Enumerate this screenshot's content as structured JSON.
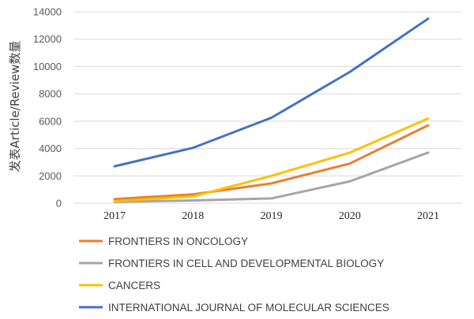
{
  "chart_data": {
    "type": "line",
    "x": [
      "2017",
      "2018",
      "2019",
      "2020",
      "2021"
    ],
    "ylabel": "发表Article/Review数量",
    "ylim": [
      0,
      14000
    ],
    "yticks": [
      "0",
      "2000",
      "4000",
      "6000",
      "8000",
      "10000",
      "12000",
      "14000"
    ],
    "grid": true,
    "legend_position": "bottom",
    "series": [
      {
        "name": "FRONTIERS IN ONCOLOGY",
        "color": "#ed7d31",
        "values": [
          300,
          650,
          1450,
          2900,
          5700
        ]
      },
      {
        "name": "FRONTIERS IN CELL AND DEVELOPMENTAL BIOLOGY",
        "color": "#a5a5a5",
        "values": [
          100,
          200,
          350,
          1600,
          3700
        ]
      },
      {
        "name": "CANCERS",
        "color": "#ffc000",
        "values": [
          150,
          500,
          2000,
          3700,
          6200
        ]
      },
      {
        "name": "INTERNATIONAL JOURNAL OF MOLECULAR SCIENCES",
        "color": "#4472c4",
        "values": [
          2700,
          4050,
          6250,
          9600,
          13500
        ]
      }
    ]
  }
}
